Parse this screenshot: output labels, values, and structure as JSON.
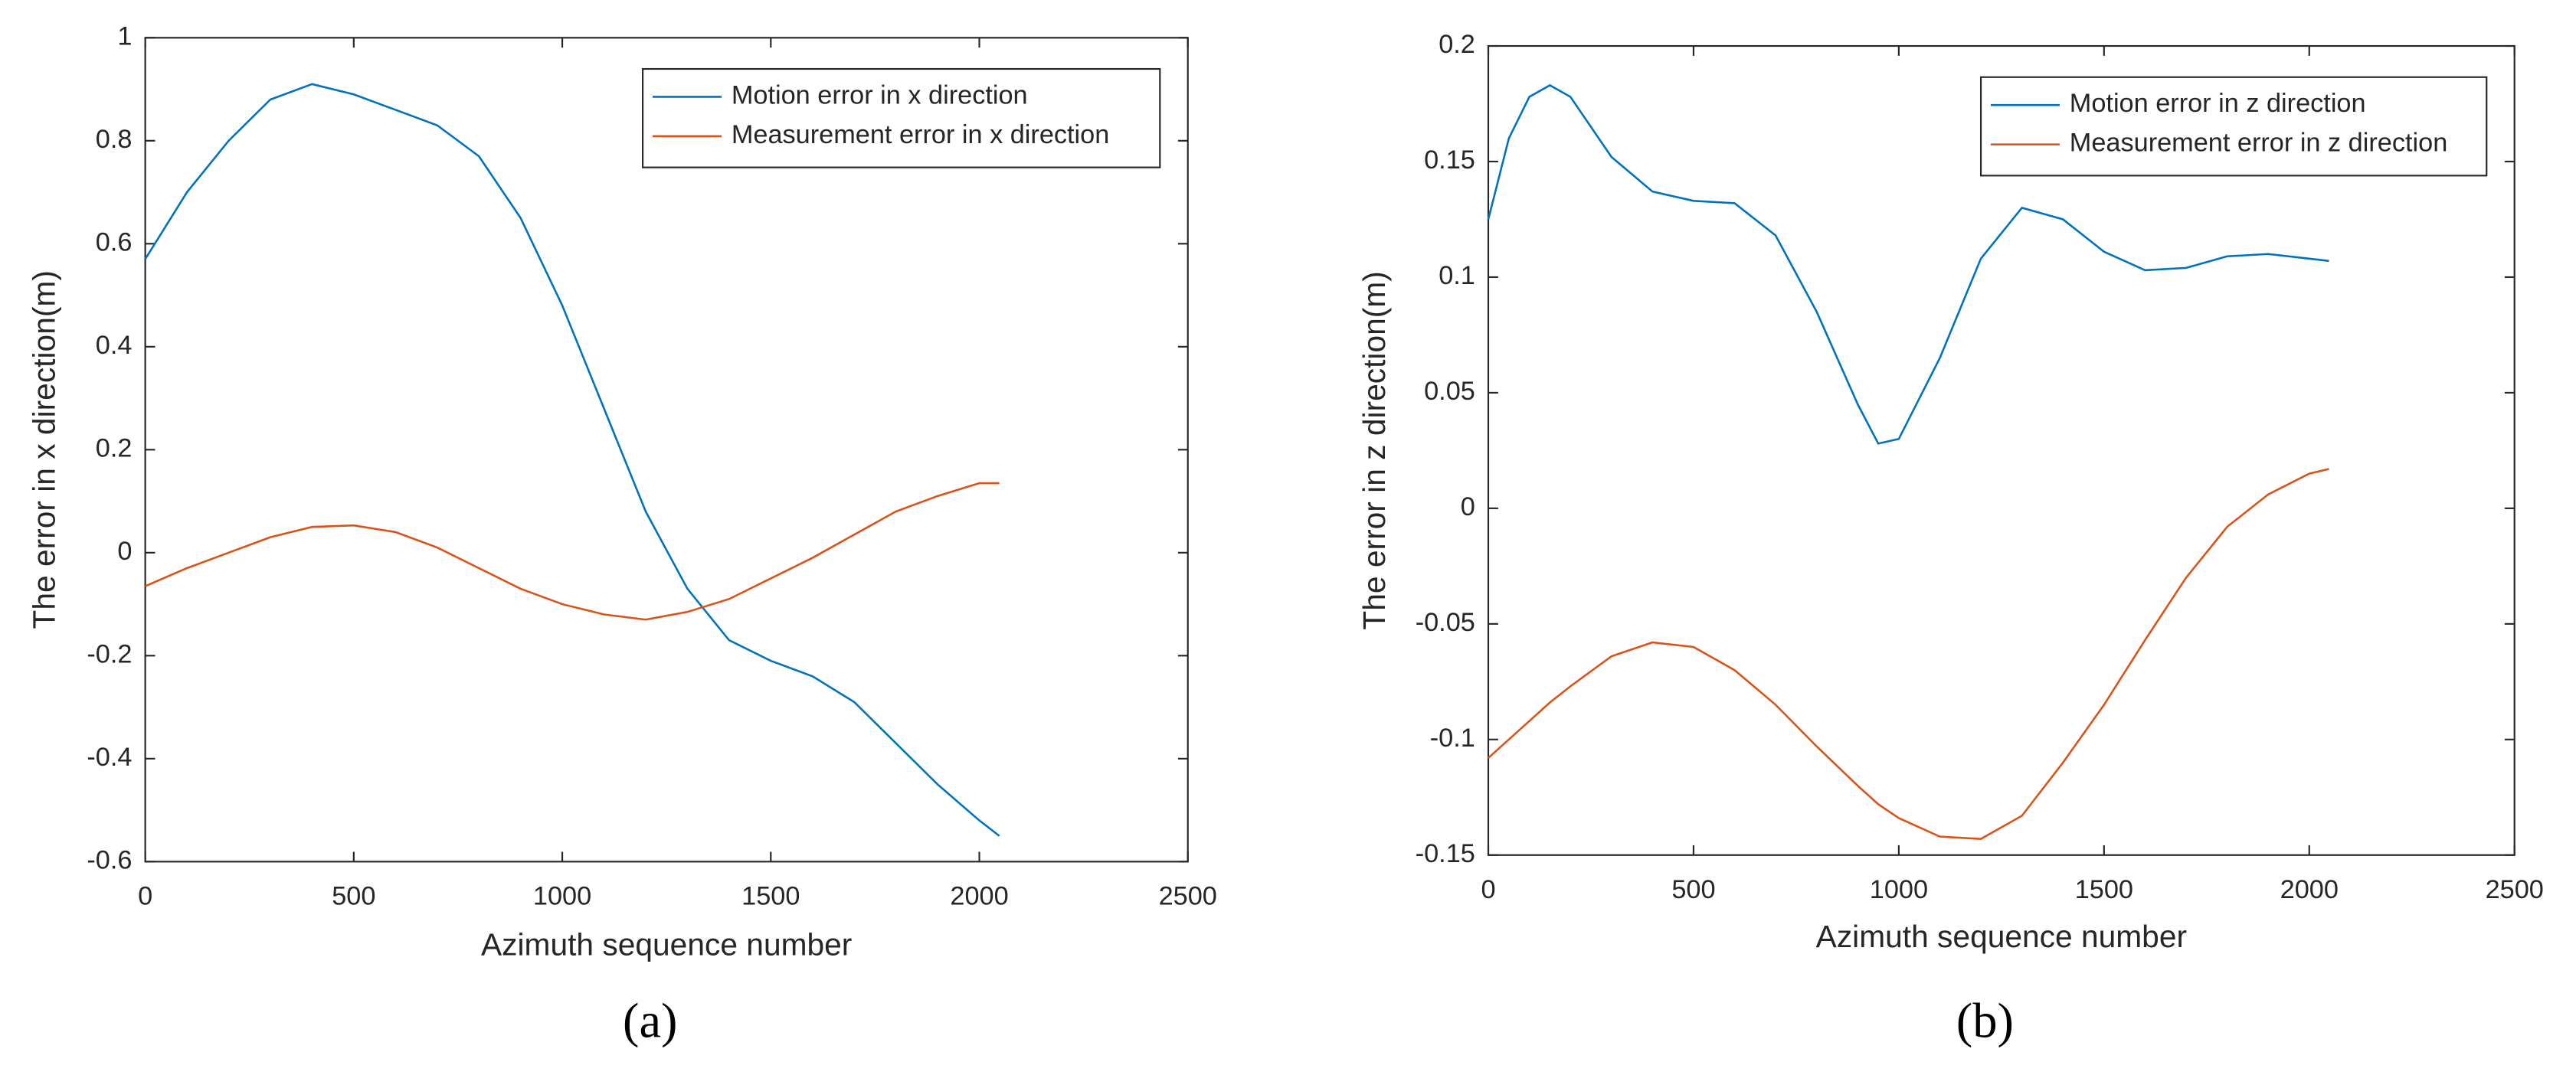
{
  "chart_data": [
    {
      "type": "line",
      "caption": "(a)",
      "xlabel": "Azimuth sequence number",
      "ylabel": "The error in x direction(m)",
      "x": [
        0,
        100,
        200,
        300,
        400,
        500,
        600,
        700,
        800,
        900,
        1000,
        1100,
        1200,
        1300,
        1400,
        1500,
        1600,
        1700,
        1800,
        1900,
        2000,
        2048
      ],
      "series": [
        {
          "name": "Motion error in x direction",
          "color": "#0072BD",
          "values": [
            0.57,
            0.7,
            0.8,
            0.88,
            0.91,
            0.89,
            0.86,
            0.83,
            0.77,
            0.65,
            0.48,
            0.28,
            0.08,
            -0.07,
            -0.17,
            -0.21,
            -0.24,
            -0.29,
            -0.37,
            -0.45,
            -0.52,
            -0.55
          ]
        },
        {
          "name": "Measurement error in x direction",
          "color": "#D95319",
          "values": [
            -0.065,
            -0.03,
            0.0,
            0.03,
            0.05,
            0.053,
            0.04,
            0.01,
            -0.03,
            -0.07,
            -0.1,
            -0.12,
            -0.13,
            -0.115,
            -0.09,
            -0.05,
            -0.01,
            0.035,
            0.08,
            0.11,
            0.135,
            0.135
          ]
        }
      ],
      "xlim": [
        0,
        2500
      ],
      "xticks": [
        0,
        500,
        1000,
        1500,
        2000,
        2500
      ],
      "ylim": [
        -0.6,
        1
      ],
      "yticks": [
        -0.6,
        -0.4,
        -0.2,
        0,
        0.2,
        0.4,
        0.6,
        0.8,
        1
      ],
      "legend": "northeast"
    },
    {
      "type": "line",
      "caption": "(b)",
      "xlabel": "Azimuth sequence number",
      "ylabel": "The error in z direction(m)",
      "x": [
        0,
        50,
        100,
        150,
        200,
        300,
        400,
        500,
        600,
        700,
        800,
        900,
        950,
        1000,
        1100,
        1200,
        1300,
        1400,
        1500,
        1600,
        1700,
        1800,
        1900,
        2000,
        2048
      ],
      "series": [
        {
          "name": "Motion error in z direction",
          "color": "#0072BD",
          "values": [
            0.125,
            0.16,
            0.178,
            0.183,
            0.178,
            0.152,
            0.137,
            0.133,
            0.132,
            0.118,
            0.085,
            0.045,
            0.028,
            0.03,
            0.065,
            0.108,
            0.13,
            0.125,
            0.111,
            0.103,
            0.104,
            0.109,
            0.11,
            0.108,
            0.107
          ]
        },
        {
          "name": "Measurement error in z direction",
          "color": "#D95319",
          "values": [
            -0.108,
            -0.1,
            -0.092,
            -0.084,
            -0.077,
            -0.064,
            -0.058,
            -0.06,
            -0.07,
            -0.085,
            -0.103,
            -0.12,
            -0.128,
            -0.134,
            -0.142,
            -0.143,
            -0.133,
            -0.11,
            -0.085,
            -0.057,
            -0.03,
            -0.008,
            0.006,
            0.015,
            0.017
          ]
        }
      ],
      "xlim": [
        0,
        2500
      ],
      "xticks": [
        0,
        500,
        1000,
        1500,
        2000,
        2500
      ],
      "ylim": [
        -0.15,
        0.2
      ],
      "yticks": [
        -0.15,
        -0.1,
        -0.05,
        0,
        0.05,
        0.1,
        0.15,
        0.2
      ],
      "legend": "northeast"
    }
  ]
}
